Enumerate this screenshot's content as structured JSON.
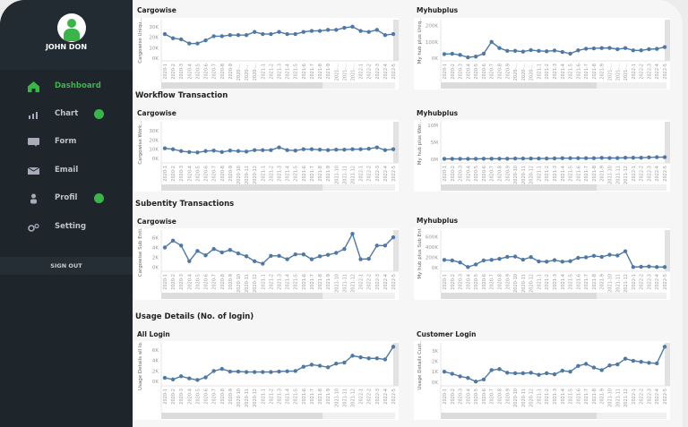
{
  "user": {
    "name": "JOHN DON"
  },
  "sidebar": {
    "items": [
      {
        "label": "Dashboard",
        "icon": "home-icon",
        "active": true,
        "badge": false
      },
      {
        "label": "Chart",
        "icon": "bar-chart-icon",
        "active": false,
        "badge": true
      },
      {
        "label": "Form",
        "icon": "form-icon",
        "active": false,
        "badge": false
      },
      {
        "label": "Email",
        "icon": "mail-icon",
        "active": false,
        "badge": false
      },
      {
        "label": "Profil",
        "icon": "user-icon",
        "active": false,
        "badge": true
      },
      {
        "label": "Setting",
        "icon": "gear-icon",
        "active": false,
        "badge": false
      }
    ],
    "signout": "SIGN OUT"
  },
  "colors": {
    "accent": "#3bb54a",
    "line": "#4e79a7",
    "sidebar": "#1e252b"
  },
  "sections": {
    "workflow": "Workflow Transaction",
    "subentity": "Subentity Transactions",
    "usage": "Usage Details (No. of login)"
  },
  "chart_data": [
    {
      "type": "line",
      "title": "Cargowise",
      "ylabel": "Cargowise Uniqu...",
      "yticks": [
        "0K",
        "10K",
        "20K",
        "30K"
      ],
      "ytickvals": [
        0,
        10,
        20,
        30
      ],
      "ylim": [
        0,
        35
      ],
      "unit": "K",
      "categories": [
        "2020-1",
        "2020-2",
        "2020-3",
        "2020-4",
        "2020-5",
        "2020-6",
        "2020-7",
        "2020-8",
        "2020-9",
        "2020-...",
        "2020-...",
        "2020-...",
        "2021-1",
        "2021-2",
        "2021-3",
        "2021-4",
        "2021-5",
        "2021-6",
        "2021-7",
        "2021-8",
        "2021-9",
        "2021-...",
        "2021-...",
        "2021-...",
        "2022-1",
        "2022-2",
        "2022-3",
        "2022-4",
        "2022-5"
      ],
      "values": [
        23,
        19,
        18,
        14,
        14,
        17,
        21,
        21,
        22,
        22,
        22,
        25,
        23,
        23,
        25,
        23,
        23,
        25,
        26,
        26,
        27,
        27,
        29,
        30,
        26,
        25,
        27,
        22,
        23
      ]
    },
    {
      "type": "line",
      "title": "Myhubplus",
      "ylabel": "My hub plus Uniq...",
      "yticks": [
        "0K",
        "100K",
        "200K"
      ],
      "ytickvals": [
        0,
        100,
        200
      ],
      "ylim": [
        0,
        225
      ],
      "unit": "K",
      "categories": [
        "2020-1",
        "2020-2",
        "2020-3",
        "2020-4",
        "2020-5",
        "2020-6",
        "2020-7",
        "2020-8",
        "2020-9",
        "2020-...",
        "2020-...",
        "2020-...",
        "2021-1",
        "2021-2",
        "2021-3",
        "2021-4",
        "2021-5",
        "2021-6",
        "2021-7",
        "2021-8",
        "2021-9",
        "2021-...",
        "2021-...",
        "2021-...",
        "2022-1",
        "2022-2",
        "2022-3",
        "2022-4",
        "2022-5"
      ],
      "values": [
        25,
        27,
        20,
        5,
        10,
        28,
        100,
        62,
        45,
        45,
        40,
        50,
        45,
        42,
        47,
        38,
        28,
        48,
        58,
        60,
        62,
        63,
        55,
        62,
        48,
        48,
        55,
        57,
        68
      ]
    },
    {
      "type": "line",
      "title": "Cargowise",
      "ylabel": "Cargowise Work...",
      "yticks": [
        "0K",
        "10K",
        "20K",
        "30K"
      ],
      "ytickvals": [
        0,
        10,
        20,
        30
      ],
      "ylim": [
        -2,
        38
      ],
      "unit": "K",
      "categories": [
        "2020-1",
        "2020-2",
        "2020-3",
        "2020-4",
        "2020-5",
        "2020-6",
        "2020-7",
        "2020-8",
        "2020-9",
        "2020-10",
        "2020-11",
        "2020-12",
        "2021-1",
        "2021-2",
        "2021-3",
        "2021-4",
        "2021-5",
        "2021-6",
        "2021-7",
        "2021-8",
        "2021-9",
        "2021-10",
        "2021-11",
        "2021-12",
        "2022-1",
        "2022-2",
        "2022-3",
        "2022-4",
        "2022-5"
      ],
      "values": [
        11,
        10,
        8,
        7,
        6.5,
        8,
        8.5,
        7,
        8.5,
        8,
        7.5,
        9,
        9,
        9,
        12,
        9,
        8.5,
        10,
        10,
        9.5,
        9,
        9.5,
        9.5,
        10,
        10,
        10.5,
        12,
        9,
        10
      ]
    },
    {
      "type": "line",
      "title": "Myhubplus",
      "ylabel": "My hub plus Wor...",
      "yticks": [
        "0M",
        "5M",
        "10M"
      ],
      "ytickvals": [
        0,
        5,
        10
      ],
      "ylim": [
        -0.3,
        10.5
      ],
      "unit": "M",
      "categories": [
        "2020-1",
        "2020-2",
        "2020-3",
        "2020-4",
        "2020-5",
        "2020-6",
        "2020-7",
        "2020-8",
        "2020-9",
        "2020-10",
        "2020-11",
        "2020-12",
        "2021-1",
        "2021-2",
        "2021-3",
        "2021-4",
        "2021-5",
        "2021-6",
        "2021-7",
        "2021-8",
        "2021-9",
        "2021-10",
        "2021-11",
        "2021-12",
        "2022-1",
        "2022-2",
        "2022-3",
        "2022-4",
        "2022-5"
      ],
      "values": [
        0.1,
        0.1,
        0.1,
        0.1,
        0.1,
        0.15,
        0.15,
        0.15,
        0.15,
        0.2,
        0.2,
        0.2,
        0.2,
        0.2,
        0.25,
        0.3,
        0.3,
        0.3,
        0.3,
        0.3,
        0.4,
        0.35,
        0.35,
        0.45,
        0.45,
        0.45,
        0.55,
        0.6,
        0.6
      ]
    },
    {
      "type": "line",
      "title": "Cargowise",
      "ylabel": "Cargowise Sub Enti...",
      "yticks": [
        "0K",
        "2K",
        "4K",
        "6K"
      ],
      "ytickvals": [
        0,
        2,
        4,
        6
      ],
      "ylim": [
        -0.3,
        7.2
      ],
      "unit": "K",
      "categories": [
        "2020-1",
        "2020-2",
        "2020-3",
        "2020-4",
        "2020-5",
        "2020-6",
        "2020-7",
        "2020-8",
        "2020-9",
        "2020-10",
        "2020-11",
        "2020-12",
        "2021-1",
        "2021-2",
        "2021-3",
        "2021-4",
        "2021-5",
        "2021-6",
        "2021-7",
        "2021-8",
        "2021-9",
        "2021-10",
        "2021-11",
        "2021-12",
        "2022-1",
        "2022-2",
        "2022-3",
        "2022-4",
        "2022-5"
      ],
      "values": [
        4.0,
        5.4,
        4.4,
        1.2,
        3.3,
        2.4,
        3.7,
        3.0,
        3.5,
        2.8,
        2.2,
        1.2,
        0.7,
        2.3,
        2.3,
        1.6,
        2.6,
        2.6,
        1.6,
        2.2,
        2.5,
        2.9,
        3.7,
        6.8,
        1.6,
        1.7,
        4.4,
        4.4,
        6.1
      ]
    },
    {
      "type": "line",
      "title": "Myhubplus",
      "ylabel": "My hub plus Sub Entity",
      "yticks": [
        "0K",
        "200K",
        "400K",
        "600K"
      ],
      "ytickvals": [
        0,
        200,
        400,
        600
      ],
      "ylim": [
        -20,
        700
      ],
      "unit": "K",
      "categories": [
        "2020-1",
        "2020-2",
        "2020-3",
        "2020-4",
        "2020-5",
        "2020-6",
        "2020-7",
        "2020-8",
        "2020-9",
        "2020-10",
        "2020-11",
        "2020-12",
        "2021-1",
        "2021-2",
        "2021-3",
        "2021-4",
        "2021-5",
        "2021-6",
        "2021-7",
        "2021-8",
        "2021-9",
        "2021-10",
        "2021-11",
        "2021-12",
        "2022-1",
        "2022-2",
        "2022-3",
        "2022-4",
        "2022-5"
      ],
      "values": [
        150,
        140,
        100,
        10,
        60,
        140,
        150,
        170,
        210,
        215,
        155,
        205,
        120,
        115,
        145,
        115,
        125,
        190,
        200,
        230,
        210,
        250,
        235,
        320,
        10,
        15,
        20,
        10,
        10
      ]
    },
    {
      "type": "line",
      "title": "All Login",
      "ylabel": "Usage Details all lo...",
      "yticks": [
        "0K",
        "2K",
        "4K",
        "6K"
      ],
      "ytickvals": [
        0,
        2,
        4,
        6
      ],
      "ylim": [
        -0.3,
        7
      ],
      "unit": "K",
      "categories": [
        "2020-1",
        "2020-2",
        "2020-3",
        "2020-4",
        "2020-5",
        "2020-6",
        "2020-7",
        "2020-8",
        "2020-9",
        "2020-10",
        "2020-11",
        "2020-12",
        "2021-1",
        "2021-2",
        "2021-3",
        "2021-4",
        "2021-5",
        "2021-6",
        "2021-7",
        "2021-8",
        "2021-9",
        "2021-10",
        "2021-11",
        "2021-12",
        "2022-1",
        "2022-2",
        "2022-3",
        "2022-4",
        "2022-5"
      ],
      "values": [
        0.7,
        0.4,
        1.0,
        0.6,
        0.3,
        0.8,
        2.0,
        2.4,
        1.9,
        1.9,
        1.8,
        1.8,
        1.8,
        1.8,
        1.9,
        1.95,
        2.0,
        2.8,
        3.2,
        3.0,
        2.7,
        3.4,
        3.6,
        4.9,
        4.6,
        4.4,
        4.4,
        4.2,
        6.6
      ]
    },
    {
      "type": "line",
      "title": "Customer Login",
      "ylabel": "Usage Details Cust...",
      "yticks": [
        "0K",
        "1K",
        "2K",
        "3K"
      ],
      "ytickvals": [
        0,
        1,
        2,
        3
      ],
      "ylim": [
        -0.1,
        3.6
      ],
      "unit": "K",
      "categories": [
        "2020-1",
        "2020-2",
        "2020-3",
        "2020-4",
        "2020-5",
        "2020-6",
        "2020-7",
        "2020-8",
        "2020-9",
        "2020-10",
        "2020-11",
        "2020-12",
        "2021-1",
        "2021-2",
        "2021-3",
        "2021-4",
        "2021-5",
        "2021-6",
        "2021-7",
        "2021-8",
        "2021-9",
        "2021-10",
        "2021-11",
        "2021-12",
        "2022-1",
        "2022-2",
        "2022-3",
        "2022-4",
        "2022-5"
      ],
      "values": [
        1.0,
        0.8,
        0.55,
        0.4,
        0.05,
        0.25,
        1.15,
        1.25,
        0.9,
        0.85,
        0.85,
        0.9,
        0.7,
        0.85,
        0.75,
        1.1,
        1.0,
        1.55,
        1.75,
        1.4,
        1.15,
        1.6,
        1.7,
        2.25,
        2.05,
        1.95,
        1.85,
        1.8,
        3.4
      ]
    }
  ]
}
